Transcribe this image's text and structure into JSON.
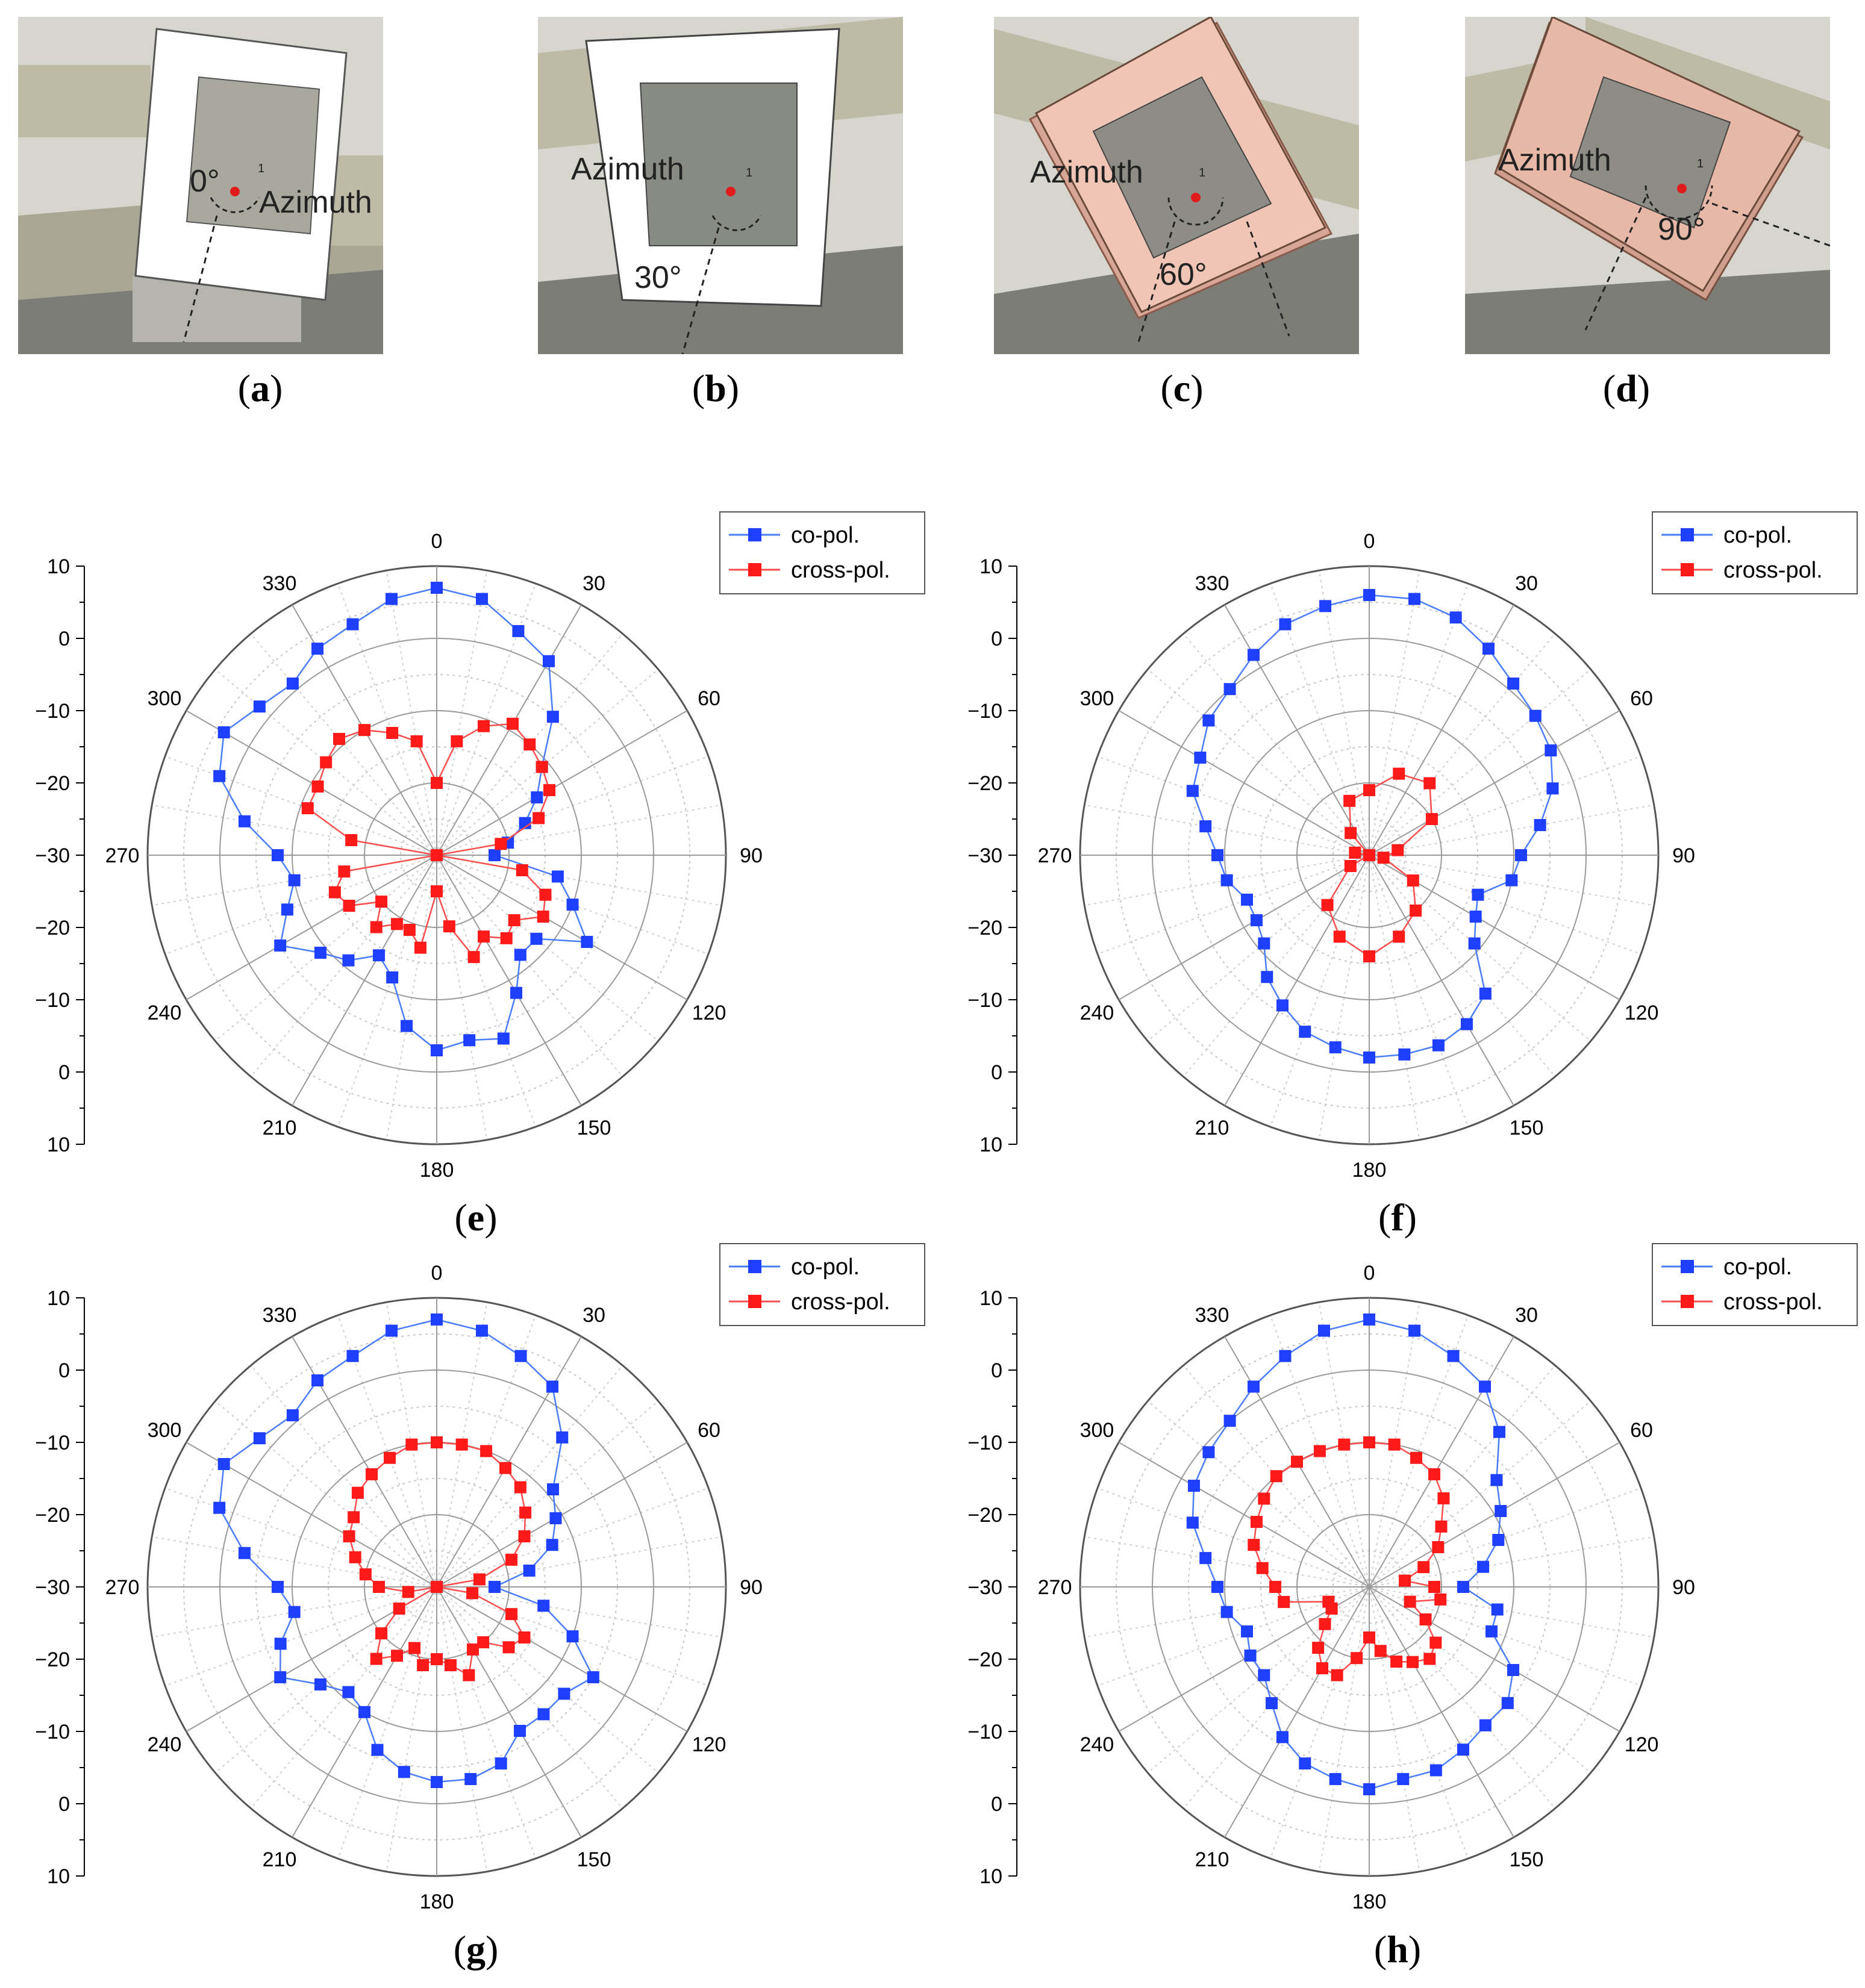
{
  "photos": [
    {
      "letter": "a",
      "angle_text": "0°",
      "azimuth_label": "Azimuth",
      "axis_mark": "1",
      "patch_color": "#ffffff"
    },
    {
      "letter": "b",
      "angle_text": "30°",
      "azimuth_label": "Azimuth",
      "axis_mark": "1",
      "patch_color": "#ffffff"
    },
    {
      "letter": "c",
      "angle_text": "60°",
      "azimuth_label": "Azimuth",
      "axis_mark": "1",
      "patch_color": "#f3c5b5"
    },
    {
      "letter": "d",
      "angle_text": "90°",
      "azimuth_label": "Azimuth",
      "axis_mark": "1",
      "patch_color": "#e8b8a6"
    }
  ],
  "colors": {
    "co_pol": "#1f3fff",
    "cross_pol": "#ff1a1a",
    "co_line": "#4a7cff",
    "cross_line": "#ff4d4d"
  },
  "chart_data": [
    {
      "id": "e",
      "type": "polar-line",
      "letter": "e",
      "angle_labels": [
        "0",
        "30",
        "60",
        "90",
        "120",
        "150",
        "180",
        "210",
        "240",
        "270",
        "300",
        "330"
      ],
      "radial_tick_labels": [
        "10",
        "0",
        "−10",
        "−20",
        "−30",
        "−20",
        "−10",
        "0",
        "10"
      ],
      "rlim": [
        -30,
        10
      ],
      "legend": [
        "co-pol.",
        "cross-pol."
      ],
      "series": [
        {
          "name": "co-pol.",
          "theta": [
            0,
            10,
            20,
            30,
            40,
            50,
            60,
            70,
            80,
            90,
            100,
            110,
            120,
            130,
            140,
            150,
            160,
            170,
            180,
            190,
            200,
            210,
            220,
            230,
            240,
            250,
            260,
            270,
            280,
            290,
            300,
            310,
            320,
            330,
            340,
            350
          ],
          "r_dB": [
            7,
            6,
            3,
            1,
            -5,
            -11,
            -14,
            -17,
            -20,
            -22,
            -13,
            -10,
            -6,
            -12,
            -12,
            -8,
            -3,
            -4,
            -3,
            -6,
            -12,
            -14,
            -11,
            -9,
            -5,
            -8,
            -10,
            -8,
            -3,
            2,
            4,
            2,
            1,
            3,
            4,
            6
          ]
        },
        {
          "name": "cross-pol.",
          "theta": [
            0,
            10,
            20,
            30,
            40,
            50,
            60,
            70,
            80,
            90,
            100,
            110,
            120,
            130,
            140,
            150,
            160,
            170,
            180,
            190,
            200,
            210,
            220,
            230,
            240,
            250,
            260,
            270,
            280,
            290,
            300,
            310,
            320,
            330,
            340,
            350
          ],
          "r_dB": [
            -20,
            -14,
            -11,
            -9,
            -10,
            -11,
            -12,
            -15,
            -21,
            -30,
            -18,
            -14,
            -13,
            -16,
            -15,
            -17,
            -15,
            -20,
            -25,
            -17,
            -19,
            -19,
            -17,
            -20,
            -16,
            -15,
            -17,
            -30,
            -18,
            -11,
            -11,
            -10,
            -9,
            -10,
            -12,
            -14
          ]
        }
      ]
    },
    {
      "id": "f",
      "type": "polar-line",
      "letter": "f",
      "angle_labels": [
        "0",
        "30",
        "60",
        "90",
        "120",
        "150",
        "180",
        "210",
        "240",
        "270",
        "300",
        "330"
      ],
      "radial_tick_labels": [
        "10",
        "0",
        "−10",
        "−20",
        "−30",
        "−20",
        "−10",
        "0",
        "10"
      ],
      "rlim": [
        -30,
        10
      ],
      "legend": [
        "co-pol.",
        "cross-pol."
      ],
      "series": [
        {
          "name": "co-pol.",
          "theta": [
            0,
            10,
            20,
            30,
            40,
            50,
            60,
            70,
            80,
            90,
            100,
            110,
            120,
            130,
            140,
            150,
            160,
            170,
            180,
            190,
            200,
            210,
            220,
            230,
            240,
            250,
            260,
            270,
            280,
            290,
            300,
            310,
            320,
            330,
            340,
            350
          ],
          "r_dB": [
            6,
            6,
            5,
            3,
            1,
            0,
            -1,
            -3,
            -6,
            -9,
            -10,
            -14,
            -13,
            -11,
            -5,
            -3,
            -2,
            -2,
            -2,
            -3,
            -4,
            -6,
            -8,
            -11,
            -12,
            -12,
            -10,
            -9,
            -7,
            -4,
            -3,
            -1,
            0,
            2,
            4,
            5
          ]
        },
        {
          "name": "cross-pol.",
          "theta": [
            0,
            20,
            40,
            60,
            80,
            100,
            120,
            140,
            160,
            180,
            200,
            220,
            240,
            260,
            280,
            300,
            320,
            340
          ],
          "r_dB": [
            -21,
            -18,
            -17,
            -20,
            -26,
            -28,
            -23,
            -20,
            -18,
            -16,
            -18,
            -21,
            -27,
            -30,
            -28,
            -30,
            -26,
            -22
          ]
        }
      ]
    },
    {
      "id": "g",
      "type": "polar-line",
      "letter": "g",
      "angle_labels": [
        "0",
        "30",
        "60",
        "90",
        "120",
        "150",
        "180",
        "210",
        "240",
        "270",
        "300",
        "330"
      ],
      "radial_tick_labels": [
        "10",
        "0",
        "−10",
        "−20",
        "−30",
        "−20",
        "−10",
        "0",
        "10"
      ],
      "rlim": [
        -30,
        10
      ],
      "legend": [
        "co-pol.",
        "cross-pol."
      ],
      "series": [
        {
          "name": "co-pol.",
          "theta": [
            0,
            10,
            20,
            30,
            40,
            50,
            60,
            70,
            80,
            90,
            100,
            110,
            120,
            130,
            140,
            150,
            160,
            170,
            180,
            190,
            200,
            210,
            220,
            230,
            240,
            250,
            260,
            270,
            280,
            290,
            300,
            310,
            320,
            330,
            340,
            350
          ],
          "r_dB": [
            7,
            6,
            4,
            2,
            -3,
            -9,
            -11,
            -13,
            -17,
            -22,
            -15,
            -10,
            -5,
            -7,
            -7,
            -7,
            -4,
            -3,
            -3,
            -4,
            -6,
            -10,
            -11,
            -9,
            -5,
            -7,
            -10,
            -8,
            -3,
            2,
            4,
            2,
            1,
            3,
            4,
            6
          ]
        },
        {
          "name": "cross-pol.",
          "theta": [
            0,
            10,
            20,
            30,
            40,
            50,
            60,
            70,
            80,
            90,
            100,
            110,
            120,
            130,
            140,
            150,
            160,
            170,
            180,
            190,
            200,
            210,
            220,
            230,
            240,
            250,
            260,
            270,
            280,
            290,
            300,
            310,
            320,
            330,
            340,
            350
          ],
          "r_dB": [
            -10,
            -10,
            -10,
            -11,
            -12,
            -14,
            -16,
            -19,
            -24,
            -30,
            -25,
            -19,
            -16,
            -17,
            -20,
            -20,
            -17,
            -19,
            -20,
            -19,
            -21,
            -19,
            -17,
            -20,
            -24,
            -30,
            -26,
            -22,
            -20,
            -18,
            -16,
            -15,
            -13,
            -12,
            -11,
            -10
          ]
        }
      ]
    },
    {
      "id": "h",
      "type": "polar-line",
      "letter": "h",
      "angle_labels": [
        "0",
        "30",
        "60",
        "90",
        "120",
        "150",
        "180",
        "210",
        "240",
        "270",
        "300",
        "330"
      ],
      "radial_tick_labels": [
        "10",
        "0",
        "−10",
        "−20",
        "−30",
        "−20",
        "−10",
        "0",
        "10"
      ],
      "rlim": [
        -30,
        10
      ],
      "legend": [
        "co-pol.",
        "cross-pol."
      ],
      "series": [
        {
          "name": "co-pol.",
          "theta": [
            0,
            10,
            20,
            30,
            40,
            50,
            60,
            70,
            80,
            90,
            100,
            110,
            120,
            130,
            140,
            150,
            160,
            170,
            180,
            190,
            200,
            210,
            220,
            230,
            240,
            250,
            260,
            270,
            280,
            290,
            300,
            310,
            320,
            330,
            340,
            350
          ],
          "r_dB": [
            7,
            6,
            4,
            2,
            -2,
            -7,
            -9,
            -11,
            -14,
            -17,
            -12,
            -12,
            -7,
            -5,
            -5,
            -4,
            -3,
            -3,
            -2,
            -3,
            -4,
            -6,
            -9,
            -11,
            -11,
            -12,
            -10,
            -9,
            -7,
            -4,
            -2,
            -1,
            0,
            2,
            4,
            6
          ]
        },
        {
          "name": "cross-pol.",
          "theta": [
            0,
            10,
            20,
            30,
            40,
            50,
            60,
            70,
            80,
            90,
            100,
            110,
            120,
            130,
            140,
            150,
            160,
            170,
            180,
            190,
            200,
            210,
            220,
            230,
            240,
            250,
            260,
            270,
            280,
            290,
            300,
            310,
            320,
            330,
            340,
            350
          ],
          "r_dB": [
            -10,
            -10,
            -11,
            -12,
            -14,
            -17,
            -19,
            -22,
            -25,
            -21,
            -20,
            -24,
            -21,
            -18,
            -17,
            -18,
            -19,
            -21,
            -23,
            -20,
            -17,
            -17,
            -19,
            -22,
            -24,
            -24,
            -18,
            -17,
            -15,
            -13,
            -12,
            -11,
            -10,
            -10,
            -10,
            -10
          ]
        }
      ]
    }
  ]
}
